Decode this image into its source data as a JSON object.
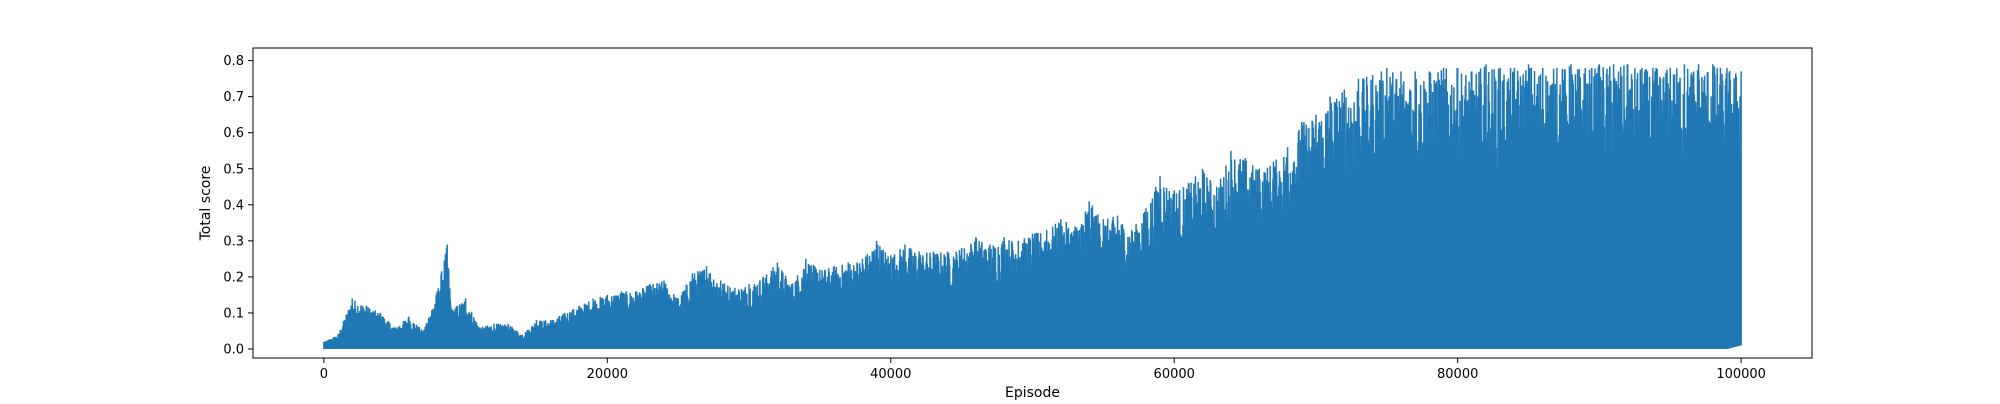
{
  "chart_data": {
    "type": "line",
    "title": "",
    "xlabel": "Episode",
    "ylabel": "Total score",
    "xlim": [
      -5000,
      105000
    ],
    "ylim": [
      -0.025,
      0.835
    ],
    "xticks": [
      0,
      20000,
      40000,
      60000,
      80000,
      100000
    ],
    "xtick_labels": [
      "0",
      "20000",
      "40000",
      "60000",
      "80000",
      "100000"
    ],
    "yticks": [
      0.0,
      0.1,
      0.2,
      0.3,
      0.4,
      0.5,
      0.6,
      0.7,
      0.8
    ],
    "ytick_labels": [
      "0.0",
      "0.1",
      "0.2",
      "0.3",
      "0.4",
      "0.5",
      "0.6",
      "0.7",
      "0.8"
    ],
    "grid": false,
    "legend": "none",
    "color": "#1f77b4",
    "series": [
      {
        "x": [
          0,
          1000,
          2000,
          3000,
          4000,
          5000,
          6000,
          7000,
          8000,
          8700,
          9000,
          10000,
          11000,
          12000,
          13000,
          14000,
          15000,
          16000,
          17000,
          18000,
          19000,
          20000,
          21000,
          22000,
          23000,
          24000,
          25000,
          26000,
          27000,
          28000,
          29000,
          30000,
          31000,
          32000,
          33000,
          34000,
          35000,
          36000,
          37000,
          38000,
          39000,
          40000,
          41000,
          42000,
          43000,
          44000,
          45000,
          46000,
          47000,
          48000,
          49000,
          50000,
          51000,
          52000,
          53000,
          54000,
          55000,
          56000,
          57000,
          58000,
          59000,
          60000,
          61000,
          62000,
          63000,
          64000,
          65000,
          66000,
          67000,
          68000,
          69000,
          70000,
          71000,
          72000,
          73000,
          74000,
          75000,
          76000,
          77000,
          78000,
          79000,
          80000,
          81000,
          82000,
          83000,
          84000,
          85000,
          86000,
          87000,
          88000,
          89000,
          90000,
          91000,
          92000,
          93000,
          94000,
          95000,
          96000,
          97000,
          98000,
          99000,
          100000
        ],
        "ymax": [
          0.02,
          0.04,
          0.14,
          0.12,
          0.1,
          0.06,
          0.09,
          0.05,
          0.16,
          0.29,
          0.11,
          0.14,
          0.06,
          0.07,
          0.07,
          0.04,
          0.08,
          0.08,
          0.1,
          0.12,
          0.14,
          0.15,
          0.16,
          0.16,
          0.18,
          0.19,
          0.14,
          0.21,
          0.23,
          0.19,
          0.17,
          0.18,
          0.2,
          0.24,
          0.18,
          0.25,
          0.22,
          0.23,
          0.24,
          0.25,
          0.3,
          0.26,
          0.29,
          0.27,
          0.27,
          0.27,
          0.28,
          0.31,
          0.29,
          0.31,
          0.3,
          0.32,
          0.33,
          0.36,
          0.34,
          0.41,
          0.36,
          0.37,
          0.33,
          0.39,
          0.48,
          0.44,
          0.46,
          0.5,
          0.45,
          0.55,
          0.53,
          0.5,
          0.52,
          0.56,
          0.63,
          0.65,
          0.7,
          0.72,
          0.75,
          0.76,
          0.78,
          0.77,
          0.77,
          0.77,
          0.78,
          0.78,
          0.77,
          0.79,
          0.78,
          0.78,
          0.79,
          0.78,
          0.78,
          0.79,
          0.78,
          0.79,
          0.79,
          0.79,
          0.78,
          0.78,
          0.78,
          0.79,
          0.79,
          0.79,
          0.78,
          0.77
        ],
        "ymin": [
          0.0,
          0.0,
          0.0,
          0.0,
          0.0,
          0.0,
          0.0,
          0.0,
          0.0,
          0.0,
          0.0,
          0.0,
          0.0,
          0.0,
          0.0,
          0.0,
          0.0,
          0.0,
          0.0,
          0.0,
          0.0,
          0.0,
          0.0,
          0.0,
          0.0,
          0.0,
          0.0,
          0.0,
          0.0,
          0.0,
          0.0,
          0.0,
          0.0,
          0.0,
          0.0,
          0.0,
          0.0,
          0.0,
          0.0,
          0.0,
          0.0,
          0.0,
          0.0,
          0.0,
          0.0,
          0.0,
          0.0,
          0.0,
          0.0,
          0.0,
          0.0,
          0.0,
          0.0,
          0.0,
          0.0,
          0.0,
          0.0,
          0.0,
          0.0,
          0.0,
          0.0,
          0.0,
          0.0,
          0.0,
          0.0,
          0.0,
          0.0,
          0.0,
          0.0,
          0.0,
          0.0,
          0.0,
          0.0,
          0.0,
          0.0,
          0.0,
          0.0,
          0.0,
          0.0,
          0.0,
          0.0,
          0.0,
          0.0,
          0.0,
          0.0,
          0.0,
          0.0,
          0.0,
          0.0,
          0.0,
          0.0,
          0.0,
          0.0,
          0.0,
          0.0,
          0.0,
          0.0,
          0.0,
          0.0,
          0.0,
          0.0,
          0.01
        ]
      }
    ]
  }
}
